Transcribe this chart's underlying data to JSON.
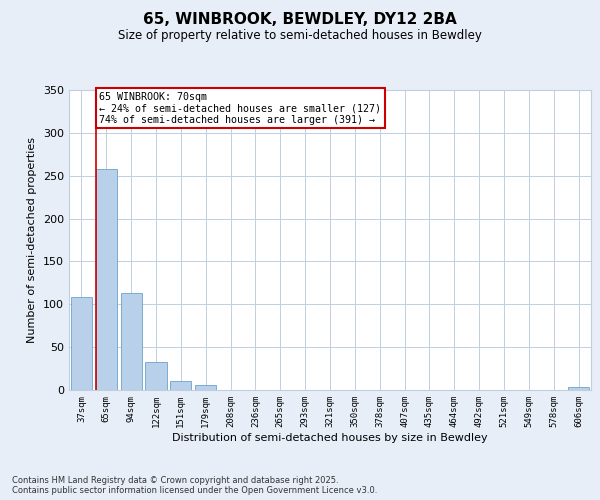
{
  "title": "65, WINBROOK, BEWDLEY, DY12 2BA",
  "subtitle": "Size of property relative to semi-detached houses in Bewdley",
  "xlabel": "Distribution of semi-detached houses by size in Bewdley",
  "ylabel": "Number of semi-detached properties",
  "categories": [
    "37sqm",
    "65sqm",
    "94sqm",
    "122sqm",
    "151sqm",
    "179sqm",
    "208sqm",
    "236sqm",
    "265sqm",
    "293sqm",
    "321sqm",
    "350sqm",
    "378sqm",
    "407sqm",
    "435sqm",
    "464sqm",
    "492sqm",
    "521sqm",
    "549sqm",
    "578sqm",
    "606sqm"
  ],
  "values": [
    108,
    258,
    113,
    33,
    10,
    6,
    0,
    0,
    0,
    0,
    0,
    0,
    0,
    0,
    0,
    0,
    0,
    0,
    0,
    0,
    3
  ],
  "bar_color": "#b8d0ea",
  "bar_edge_color": "#6ba3cc",
  "highlight_bar_index": 1,
  "highlight_color": "#cc0000",
  "property_label": "65 WINBROOK: 70sqm",
  "pct_smaller": "24% of semi-detached houses are smaller (127)",
  "pct_larger": "74% of semi-detached houses are larger (391)",
  "ylim": [
    0,
    350
  ],
  "yticks": [
    0,
    50,
    100,
    150,
    200,
    250,
    300,
    350
  ],
  "footnote": "Contains HM Land Registry data © Crown copyright and database right 2025.\nContains public sector information licensed under the Open Government Licence v3.0.",
  "bg_color": "#e8eef8",
  "plot_bg_color": "#ffffff",
  "grid_color": "#c0cfe0"
}
